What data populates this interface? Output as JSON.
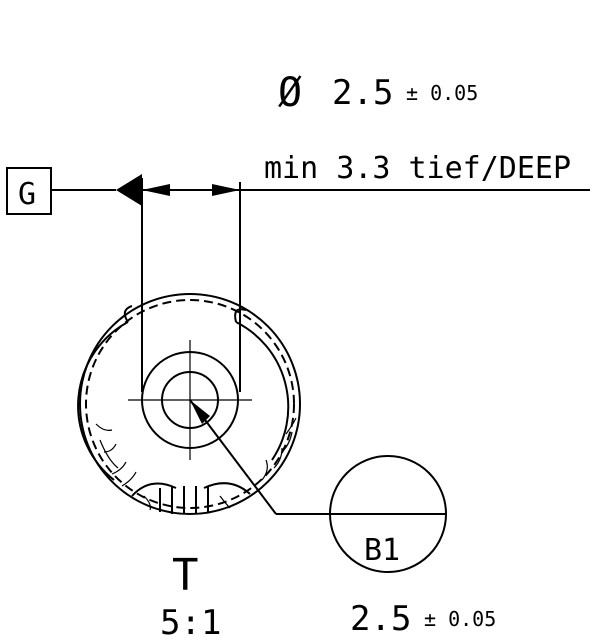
{
  "diameter_symbol": "Ø",
  "diameter_value": "2.5",
  "diameter_tolerance": "± 0.05",
  "depth_note": "min 3.3 tief/DEEP",
  "datum_label": "G",
  "detail_view_label": "T",
  "detail_scale": "5:1",
  "balloon_label": "B1",
  "balloon_value": "2.5",
  "balloon_tolerance": "± 0.05"
}
